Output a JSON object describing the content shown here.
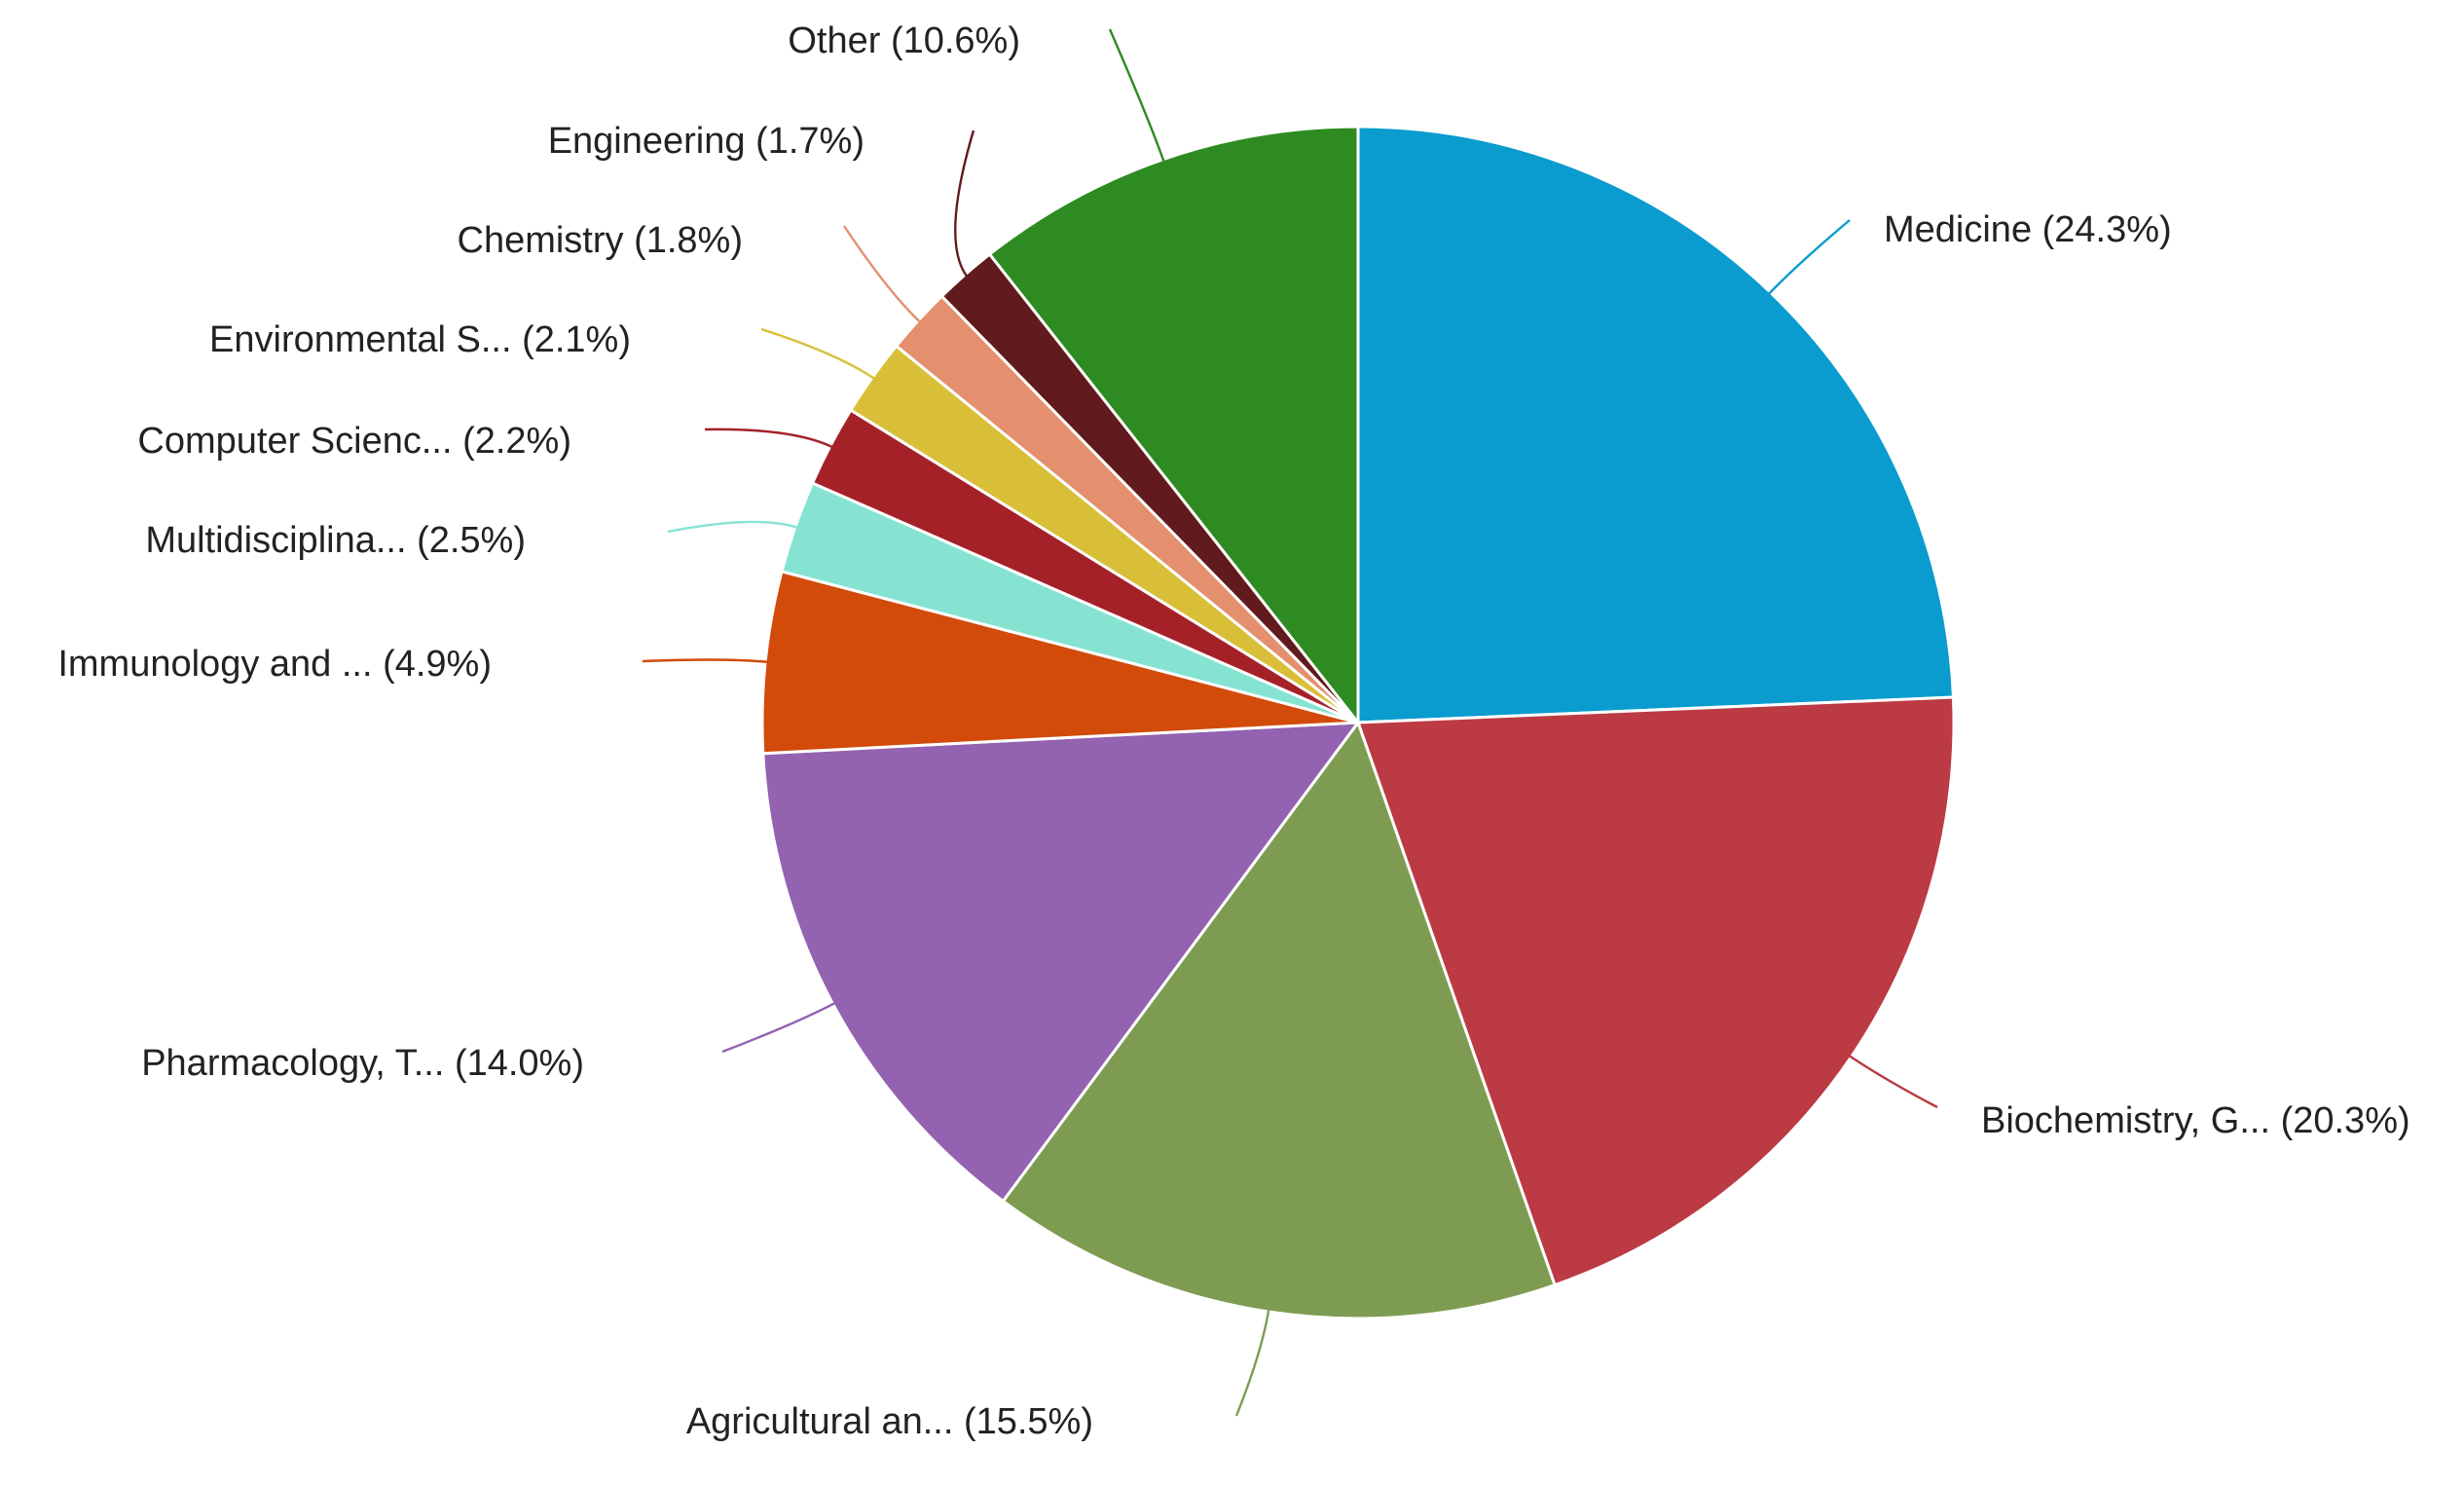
{
  "chart_data": {
    "type": "pie",
    "title": "",
    "start_angle_deg": 0,
    "direction": "clockwise",
    "slices": [
      {
        "name": "Medicine",
        "label": "Medicine (24.3%)",
        "value": 24.3,
        "color": "#0a9ccf"
      },
      {
        "name": "Biochemistry, G...",
        "label": "Biochemistry, G... (20.3%)",
        "value": 20.3,
        "color": "#bb3a43"
      },
      {
        "name": "Agricultural an...",
        "label": "Agricultural an... (15.5%)",
        "value": 15.5,
        "color": "#7d9c52"
      },
      {
        "name": "Pharmacology, T...",
        "label": "Pharmacology, T... (14.0%)",
        "value": 14.0,
        "color": "#9362b0"
      },
      {
        "name": "Immunology and ...",
        "label": "Immunology and ... (4.9%)",
        "value": 4.9,
        "color": "#d24b0a"
      },
      {
        "name": "Multidisciplina...",
        "label": "Multidisciplina... (2.5%)",
        "value": 2.5,
        "color": "#86e3d2"
      },
      {
        "name": "Computer Scienc...",
        "label": "Computer Scienc... (2.2%)",
        "value": 2.2,
        "color": "#a52128"
      },
      {
        "name": "Environmental S...",
        "label": "Environmental S... (2.1%)",
        "value": 2.1,
        "color": "#d9bf38"
      },
      {
        "name": "Chemistry",
        "label": "Chemistry (1.8%)",
        "value": 1.8,
        "color": "#e48f6d"
      },
      {
        "name": "Engineering",
        "label": "Engineering (1.7%)",
        "value": 1.7,
        "color": "#611a1d"
      },
      {
        "name": "Other",
        "label": "Other (10.6%)",
        "value": 10.6,
        "color": "#2e8b21"
      }
    ]
  }
}
